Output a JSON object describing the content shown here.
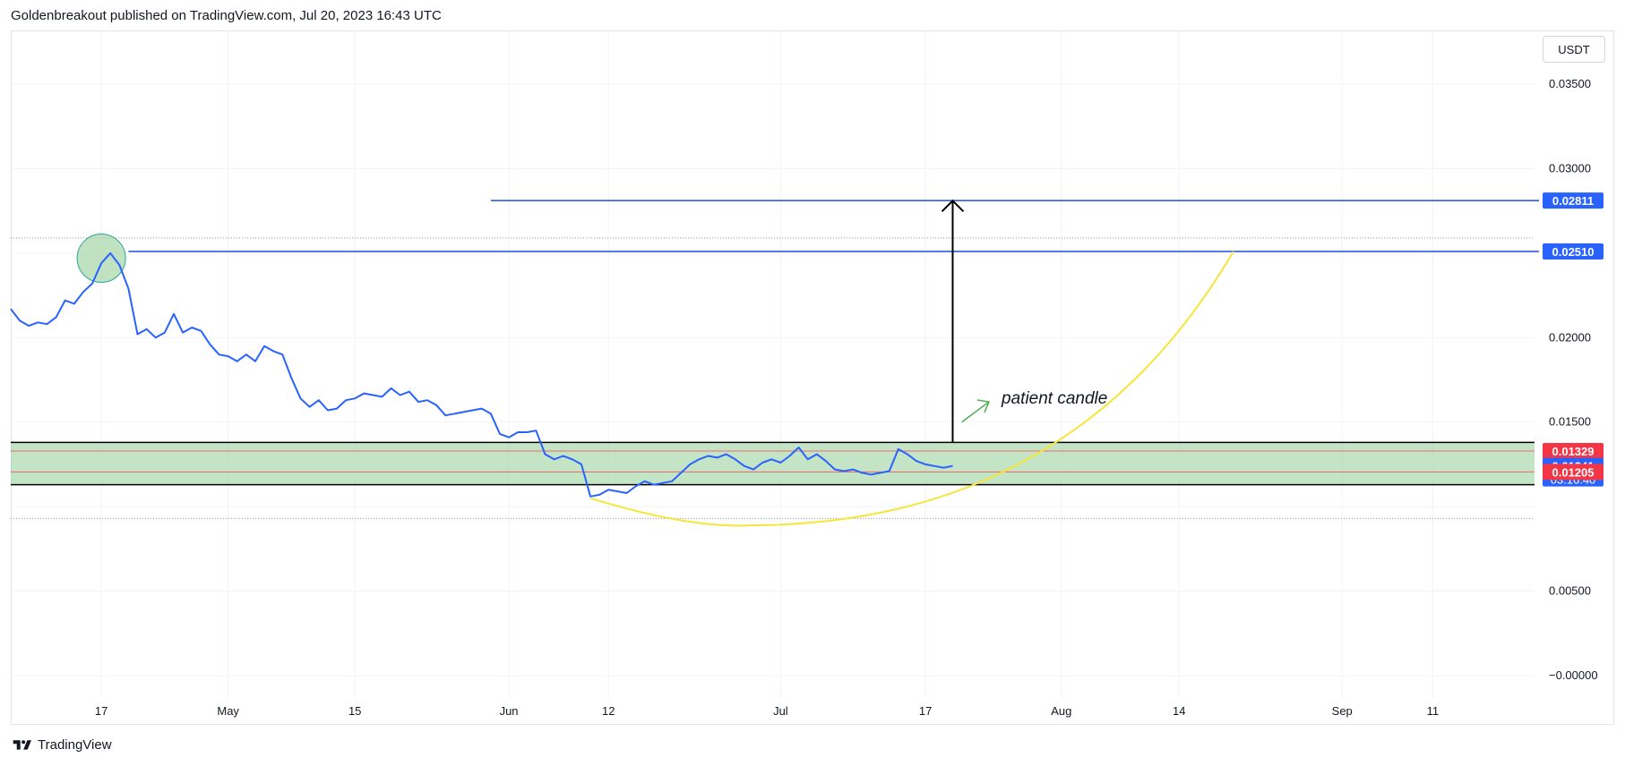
{
  "header": {
    "text": "Goldenbreakout published on TradingView.com, Jul 20, 2023 16:43 UTC"
  },
  "toolbar": {
    "currency_label": "USDT"
  },
  "footer": {
    "brand": "TradingView"
  },
  "colors": {
    "price_line": "#2962ff",
    "level_line": "#1e4fd8",
    "zone_fill": "#a5d6a7",
    "red_label": "#f23645",
    "blue_label": "#2962ff",
    "curve": "#f5e63b",
    "arrow_green": "#4caf50",
    "grid": "#f0f3fa"
  },
  "chart_data": {
    "type": "line",
    "currency": "USDT",
    "ylim": [
      -0.0003,
      0.0379
    ],
    "y_ticks": [
      "0.03500",
      "0.03000",
      "0.02000",
      "0.01500",
      "0.00500",
      "−0.00000"
    ],
    "y_tick_values": [
      0.035,
      0.03,
      0.02,
      0.015,
      0.005,
      0.0
    ],
    "x_ticks": [
      "17",
      "May",
      "15",
      "Jun",
      "12",
      "Jul",
      "17",
      "Aug",
      "14",
      "Sep",
      "11"
    ],
    "x_tick_dates": [
      "2023-04-17",
      "2023-05-01",
      "2023-05-15",
      "2023-06-01",
      "2023-06-12",
      "2023-07-01",
      "2023-07-17",
      "2023-08-01",
      "2023-08-14",
      "2023-09-01",
      "2023-09-11"
    ],
    "xlim": [
      "2023-04-07",
      "2023-09-17"
    ],
    "series": [
      {
        "values": [
          [
            "2023-04-07",
            0.0217
          ],
          [
            "2023-04-08",
            0.021
          ],
          [
            "2023-04-09",
            0.0207
          ],
          [
            "2023-04-10",
            0.0209
          ],
          [
            "2023-04-11",
            0.0208
          ],
          [
            "2023-04-12",
            0.0212
          ],
          [
            "2023-04-13",
            0.0222
          ],
          [
            "2023-04-14",
            0.022
          ],
          [
            "2023-04-15",
            0.0227
          ],
          [
            "2023-04-16",
            0.0232
          ],
          [
            "2023-04-17",
            0.0244
          ],
          [
            "2023-04-18",
            0.025
          ],
          [
            "2023-04-19",
            0.0243
          ],
          [
            "2023-04-20",
            0.0229
          ],
          [
            "2023-04-21",
            0.0202
          ],
          [
            "2023-04-22",
            0.0205
          ],
          [
            "2023-04-23",
            0.02
          ],
          [
            "2023-04-24",
            0.0203
          ],
          [
            "2023-04-25",
            0.0214
          ],
          [
            "2023-04-26",
            0.0203
          ],
          [
            "2023-04-27",
            0.0206
          ],
          [
            "2023-04-28",
            0.0204
          ],
          [
            "2023-04-29",
            0.0196
          ],
          [
            "2023-04-30",
            0.019
          ],
          [
            "2023-05-01",
            0.0189
          ],
          [
            "2023-05-02",
            0.0186
          ],
          [
            "2023-05-03",
            0.019
          ],
          [
            "2023-05-04",
            0.0186
          ],
          [
            "2023-05-05",
            0.0195
          ],
          [
            "2023-05-06",
            0.0192
          ],
          [
            "2023-05-07",
            0.019
          ],
          [
            "2023-05-08",
            0.0176
          ],
          [
            "2023-05-09",
            0.0164
          ],
          [
            "2023-05-10",
            0.0159
          ],
          [
            "2023-05-11",
            0.0163
          ],
          [
            "2023-05-12",
            0.0157
          ],
          [
            "2023-05-13",
            0.0158
          ],
          [
            "2023-05-14",
            0.0163
          ],
          [
            "2023-05-15",
            0.0164
          ],
          [
            "2023-05-16",
            0.0167
          ],
          [
            "2023-05-17",
            0.0166
          ],
          [
            "2023-05-18",
            0.0165
          ],
          [
            "2023-05-19",
            0.017
          ],
          [
            "2023-05-20",
            0.0166
          ],
          [
            "2023-05-21",
            0.0168
          ],
          [
            "2023-05-22",
            0.0162
          ],
          [
            "2023-05-23",
            0.0163
          ],
          [
            "2023-05-24",
            0.016
          ],
          [
            "2023-05-25",
            0.0154
          ],
          [
            "2023-05-26",
            0.0155
          ],
          [
            "2023-05-27",
            0.0156
          ],
          [
            "2023-05-28",
            0.0157
          ],
          [
            "2023-05-29",
            0.0158
          ],
          [
            "2023-05-30",
            0.0155
          ],
          [
            "2023-05-31",
            0.0143
          ],
          [
            "2023-06-01",
            0.0141
          ],
          [
            "2023-06-02",
            0.0144
          ],
          [
            "2023-06-03",
            0.0144
          ],
          [
            "2023-06-04",
            0.0145
          ],
          [
            "2023-06-05",
            0.0131
          ],
          [
            "2023-06-06",
            0.0128
          ],
          [
            "2023-06-07",
            0.013
          ],
          [
            "2023-06-08",
            0.0128
          ],
          [
            "2023-06-09",
            0.0125
          ],
          [
            "2023-06-10",
            0.0106
          ],
          [
            "2023-06-11",
            0.0107
          ],
          [
            "2023-06-12",
            0.011
          ],
          [
            "2023-06-13",
            0.0109
          ],
          [
            "2023-06-14",
            0.0108
          ],
          [
            "2023-06-15",
            0.0112
          ],
          [
            "2023-06-16",
            0.0115
          ],
          [
            "2023-06-17",
            0.0113
          ],
          [
            "2023-06-18",
            0.0114
          ],
          [
            "2023-06-19",
            0.0115
          ],
          [
            "2023-06-20",
            0.012
          ],
          [
            "2023-06-21",
            0.0125
          ],
          [
            "2023-06-22",
            0.0128
          ],
          [
            "2023-06-23",
            0.013
          ],
          [
            "2023-06-24",
            0.0129
          ],
          [
            "2023-06-25",
            0.0131
          ],
          [
            "2023-06-26",
            0.0128
          ],
          [
            "2023-06-27",
            0.0124
          ],
          [
            "2023-06-28",
            0.0122
          ],
          [
            "2023-06-29",
            0.0126
          ],
          [
            "2023-06-30",
            0.0128
          ],
          [
            "2023-07-01",
            0.0126
          ],
          [
            "2023-07-02",
            0.013
          ],
          [
            "2023-07-03",
            0.0135
          ],
          [
            "2023-07-04",
            0.0128
          ],
          [
            "2023-07-05",
            0.0131
          ],
          [
            "2023-07-06",
            0.0127
          ],
          [
            "2023-07-07",
            0.0122
          ],
          [
            "2023-07-08",
            0.0121
          ],
          [
            "2023-07-09",
            0.0122
          ],
          [
            "2023-07-10",
            0.012
          ],
          [
            "2023-07-11",
            0.0119
          ],
          [
            "2023-07-12",
            0.012
          ],
          [
            "2023-07-13",
            0.0121
          ],
          [
            "2023-07-14",
            0.0134
          ],
          [
            "2023-07-15",
            0.0131
          ],
          [
            "2023-07-16",
            0.0127
          ],
          [
            "2023-07-17",
            0.0125
          ],
          [
            "2023-07-18",
            0.0124
          ],
          [
            "2023-07-19",
            0.0123
          ],
          [
            "2023-07-20",
            0.01241
          ]
        ]
      }
    ],
    "horizontal_levels": [
      {
        "value": 0.02811,
        "label": "0.02811",
        "start": "2023-05-30"
      },
      {
        "value": 0.0251,
        "label": "0.02510",
        "start": "2023-04-20"
      }
    ],
    "zone": {
      "top": 0.0138,
      "bottom": 0.0113
    },
    "zone_lines": [
      0.01329,
      0.01205
    ],
    "dotted_levels": [
      0.0259,
      0.0093
    ],
    "price_labels": [
      {
        "value": 0.01329,
        "label": "0.01329",
        "style": "red"
      },
      {
        "value": 0.01241,
        "label": "0.01241",
        "style": "blue",
        "sub": "03:16:40"
      },
      {
        "value": 0.01205,
        "label": "0.01205",
        "style": "red"
      }
    ],
    "curve": {
      "start": [
        "2023-06-10",
        0.0105
      ],
      "vertex": [
        "2023-06-22",
        0.009
      ],
      "end": [
        "2023-08-20",
        0.0251
      ]
    },
    "vertical_arrow": {
      "date": "2023-07-20",
      "from": 0.0138,
      "to": 0.0281
    },
    "small_arrow": {
      "from": [
        "2023-07-21",
        0.015
      ],
      "to": [
        "2023-07-24",
        0.0162
      ]
    },
    "highlight_circle": {
      "date": "2023-04-17",
      "value": 0.0247
    },
    "annotation": {
      "text": "patient candle",
      "date": "2023-07-25",
      "value": 0.016
    }
  }
}
